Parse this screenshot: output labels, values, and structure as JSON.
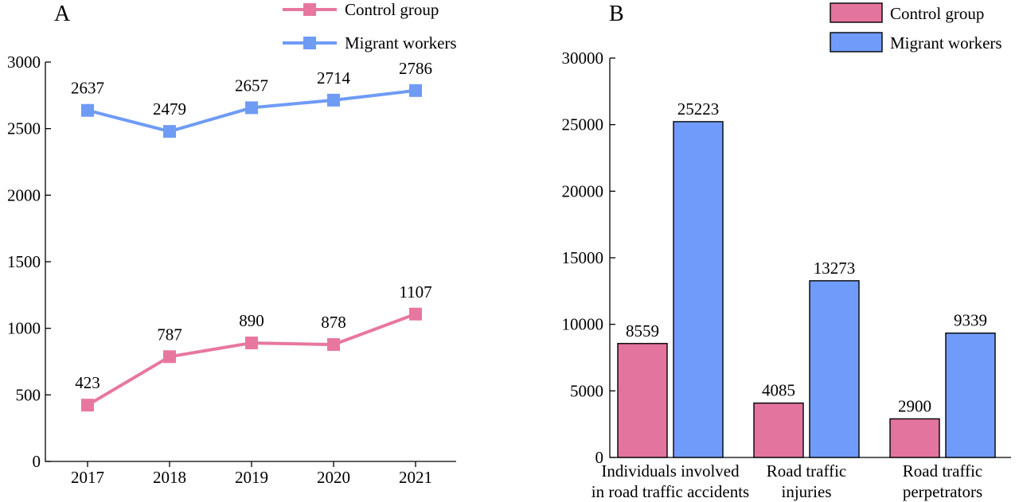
{
  "colors": {
    "control": "#E8779F",
    "migrant": "#6F9BF5",
    "control_bar": "#E3749E",
    "migrant_bar": "#709BFA"
  },
  "chart_data": [
    {
      "type": "line",
      "panel_label": "A",
      "title": "",
      "xlabel": "",
      "ylabel": "",
      "x": [
        "2017",
        "2018",
        "2019",
        "2020",
        "2021"
      ],
      "ylim": [
        0,
        3000
      ],
      "yticks": [
        0,
        500,
        1000,
        1500,
        2000,
        2500,
        3000
      ],
      "grid": false,
      "legend": "top-right",
      "series": [
        {
          "name": "Control group",
          "values": [
            423,
            787,
            890,
            878,
            1107
          ]
        },
        {
          "name": "Migrant workers",
          "values": [
            2637,
            2479,
            2657,
            2714,
            2786
          ]
        }
      ]
    },
    {
      "type": "bar",
      "panel_label": "B",
      "title": "",
      "xlabel": "",
      "ylabel": "",
      "categories": [
        [
          "Individuals involved",
          "in road traffic accidents"
        ],
        [
          "Road traffic",
          "injuries"
        ],
        [
          "Road traffic",
          "perpetrators"
        ]
      ],
      "ylim": [
        0,
        30000
      ],
      "yticks": [
        0,
        5000,
        10000,
        15000,
        20000,
        25000,
        30000
      ],
      "grid": false,
      "legend": "top-right",
      "series": [
        {
          "name": "Control group",
          "values": [
            8559,
            4085,
            2900
          ]
        },
        {
          "name": "Migrant workers",
          "values": [
            25223,
            13273,
            9339
          ]
        }
      ]
    }
  ]
}
